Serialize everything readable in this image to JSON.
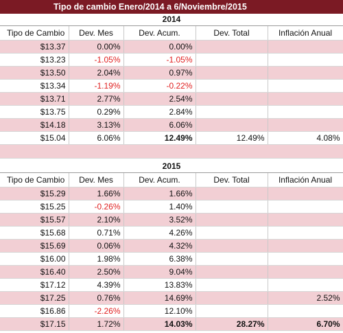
{
  "title": "Tipo de cambio Enero/2014 a 6/Noviembre/2015",
  "headers": [
    "Tipo de Cambio",
    "Dev. Mes",
    "Dev. Acum.",
    "Dev. Total",
    "Inflación Anual"
  ],
  "tables": [
    {
      "year": "2014",
      "rows": [
        {
          "tc": "$13.37",
          "mes": "0.00%",
          "acum": "0.00%",
          "total": "",
          "infl": ""
        },
        {
          "tc": "$13.23",
          "mes": "-1.05%",
          "acum": "-1.05%",
          "total": "",
          "infl": ""
        },
        {
          "tc": "$13.50",
          "mes": "2.04%",
          "acum": "0.97%",
          "total": "",
          "infl": ""
        },
        {
          "tc": "$13.34",
          "mes": "-1.19%",
          "acum": "-0.22%",
          "total": "",
          "infl": ""
        },
        {
          "tc": "$13.71",
          "mes": "2.77%",
          "acum": "2.54%",
          "total": "",
          "infl": ""
        },
        {
          "tc": "$13.75",
          "mes": "0.29%",
          "acum": "2.84%",
          "total": "",
          "infl": ""
        },
        {
          "tc": "$14.18",
          "mes": "3.13%",
          "acum": "6.06%",
          "total": "",
          "infl": ""
        },
        {
          "tc": "$15.04",
          "mes": "6.06%",
          "acum": "12.49%",
          "total": "12.49%",
          "infl": "4.08%"
        }
      ]
    },
    {
      "year": "2015",
      "rows": [
        {
          "tc": "$15.29",
          "mes": "1.66%",
          "acum": "1.66%",
          "total": "",
          "infl": ""
        },
        {
          "tc": "$15.25",
          "mes": "-0.26%",
          "acum": "1.40%",
          "total": "",
          "infl": ""
        },
        {
          "tc": "$15.57",
          "mes": "2.10%",
          "acum": "3.52%",
          "total": "",
          "infl": ""
        },
        {
          "tc": "$15.68",
          "mes": "0.71%",
          "acum": "4.26%",
          "total": "",
          "infl": ""
        },
        {
          "tc": "$15.69",
          "mes": "0.06%",
          "acum": "4.32%",
          "total": "",
          "infl": ""
        },
        {
          "tc": "$16.00",
          "mes": "1.98%",
          "acum": "6.38%",
          "total": "",
          "infl": ""
        },
        {
          "tc": "$16.40",
          "mes": "2.50%",
          "acum": "9.04%",
          "total": "",
          "infl": ""
        },
        {
          "tc": "$17.12",
          "mes": "4.39%",
          "acum": "13.83%",
          "total": "",
          "infl": ""
        },
        {
          "tc": "$17.25",
          "mes": "0.76%",
          "acum": "14.69%",
          "total": "",
          "infl": "2.52%"
        },
        {
          "tc": "$16.86",
          "mes": "-2.26%",
          "acum": "12.10%",
          "total": "",
          "infl": ""
        },
        {
          "tc": "$17.15",
          "mes": "1.72%",
          "acum": "14.03%",
          "total": "28.27%",
          "infl": "6.70%"
        }
      ]
    }
  ]
}
